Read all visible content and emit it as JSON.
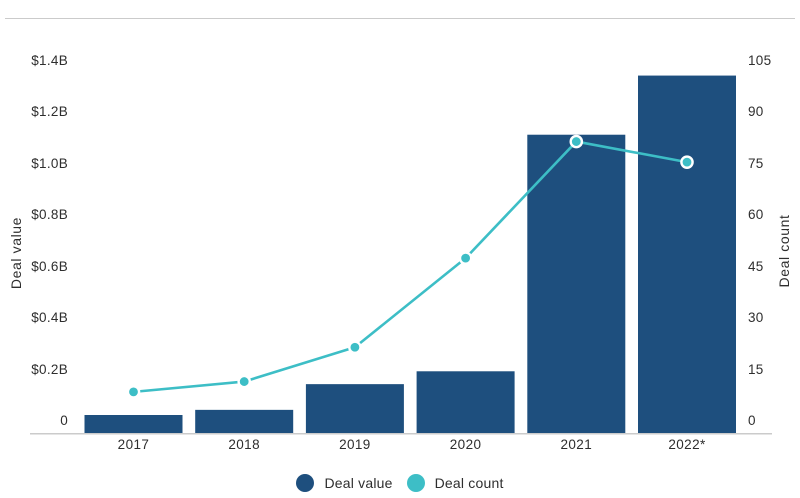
{
  "chart_data": {
    "type": "combo",
    "title": "",
    "categories": [
      "2017",
      "2018",
      "2019",
      "2020",
      "2021",
      "2022*"
    ],
    "series": [
      {
        "name": "Deal value",
        "type": "bar",
        "axis": "left",
        "unit": "$B",
        "values": [
          0.07,
          0.09,
          0.19,
          0.24,
          1.16,
          1.39
        ],
        "color": "#1e4f7e"
      },
      {
        "name": "Deal count",
        "type": "line",
        "axis": "right",
        "values": [
          12,
          15,
          25,
          51,
          85,
          79
        ],
        "color": "#3dbec6",
        "point_stroke": "#ffffff"
      }
    ],
    "left_axis": {
      "label": "Deal value",
      "range": [
        0,
        1.4
      ],
      "tick_step": 0.2,
      "tick_labels_top_to_bottom": [
        "$1.4B",
        "$1.2B",
        "$1.0B",
        "$0.8B",
        "$0.6B",
        "$0.4B",
        "$0.2B",
        "0"
      ]
    },
    "right_axis": {
      "label": "Deal count",
      "range": [
        0,
        105
      ],
      "tick_step": 15,
      "tick_labels_top_to_bottom": [
        "105",
        "90",
        "75",
        "60",
        "45",
        "30",
        "15",
        "0"
      ]
    },
    "grid": false,
    "legend_position": "bottom",
    "legend": [
      {
        "label": "Deal value",
        "color": "#1e4f7e"
      },
      {
        "label": "Deal count",
        "color": "#3dbec6"
      }
    ],
    "baseline_color": "#cbcbcb",
    "top_rule_color": "#cbcbcb"
  }
}
